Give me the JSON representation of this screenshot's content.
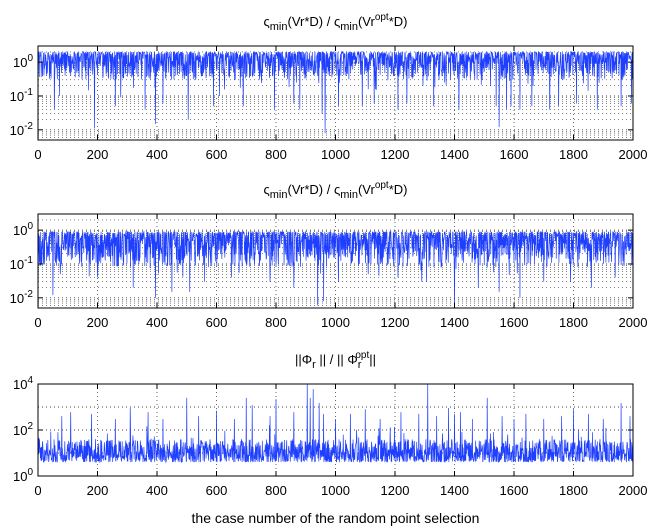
{
  "chart_data": [
    {
      "type": "line",
      "title_parts": {
        "sym": "ς",
        "sub1": "min",
        "mid": "(Vr*D) / ",
        "sym2": "ς",
        "sub2": "min",
        "pre": "(Vr",
        "sup": "opt",
        "post": "*D)"
      },
      "yscale": "log",
      "xlim": [
        0,
        2000
      ],
      "ylim": [
        0.005,
        3
      ],
      "x_ticks": [
        "0",
        "200",
        "400",
        "600",
        "800",
        "1000",
        "1200",
        "1400",
        "1600",
        "1800",
        "2000"
      ],
      "y_ticks": [
        {
          "base": "10",
          "exp": "0",
          "value": 1
        },
        {
          "base": "10",
          "exp": "-1",
          "value": 0.1
        },
        {
          "base": "10",
          "exp": "-2",
          "value": 0.01
        }
      ],
      "series_color": "#1f3fff",
      "n_points": 2000,
      "typical_range": [
        0.3,
        2.0
      ],
      "dip_floor": 0.008,
      "dips": [
        [
          55,
          0.04
        ],
        [
          72,
          0.1
        ],
        [
          190,
          0.011
        ],
        [
          260,
          0.05
        ],
        [
          360,
          0.04
        ],
        [
          395,
          0.015
        ],
        [
          420,
          0.06
        ],
        [
          505,
          0.02
        ],
        [
          590,
          0.05
        ],
        [
          610,
          0.1
        ],
        [
          690,
          0.05
        ],
        [
          795,
          0.04
        ],
        [
          860,
          0.06
        ],
        [
          880,
          0.04
        ],
        [
          955,
          0.03
        ],
        [
          965,
          0.008
        ],
        [
          1010,
          0.05
        ],
        [
          1090,
          0.05
        ],
        [
          1130,
          0.06
        ],
        [
          1210,
          0.04
        ],
        [
          1240,
          0.06
        ],
        [
          1330,
          0.05
        ],
        [
          1415,
          0.04
        ],
        [
          1540,
          0.05
        ],
        [
          1550,
          0.012
        ],
        [
          1575,
          0.04
        ],
        [
          1590,
          0.05
        ],
        [
          1620,
          0.04
        ],
        [
          1660,
          0.05
        ],
        [
          1720,
          0.04
        ],
        [
          1750,
          0.05
        ],
        [
          1810,
          0.06
        ],
        [
          1880,
          0.04
        ],
        [
          1960,
          0.05
        ],
        [
          1995,
          0.06
        ]
      ]
    },
    {
      "type": "line",
      "title_parts": {
        "sym": "ς",
        "sub1": "min",
        "mid": "(Vr*D) / ",
        "sym2": "ς",
        "sub2": "min",
        "pre": "(Vr",
        "sup": "opt",
        "post": "*D)"
      },
      "yscale": "log",
      "xlim": [
        0,
        2000
      ],
      "ylim": [
        0.005,
        3
      ],
      "x_ticks": [
        "0",
        "200",
        "400",
        "600",
        "800",
        "1000",
        "1200",
        "1400",
        "1600",
        "1800",
        "2000"
      ],
      "y_ticks": [
        {
          "base": "10",
          "exp": "0",
          "value": 1
        },
        {
          "base": "10",
          "exp": "-1",
          "value": 0.1
        },
        {
          "base": "10",
          "exp": "-2",
          "value": 0.01
        }
      ],
      "series_color": "#1f3fff",
      "n_points": 2000,
      "typical_range": [
        0.08,
        0.9
      ],
      "dip_floor": 0.006,
      "dips": [
        [
          50,
          0.012
        ],
        [
          75,
          0.05
        ],
        [
          200,
          0.04
        ],
        [
          320,
          0.02
        ],
        [
          395,
          0.01
        ],
        [
          450,
          0.015
        ],
        [
          510,
          0.015
        ],
        [
          560,
          0.03
        ],
        [
          650,
          0.04
        ],
        [
          780,
          0.03
        ],
        [
          860,
          0.02
        ],
        [
          940,
          0.006
        ],
        [
          960,
          0.008
        ],
        [
          1010,
          0.03
        ],
        [
          1110,
          0.05
        ],
        [
          1210,
          0.04
        ],
        [
          1290,
          0.03
        ],
        [
          1400,
          0.006
        ],
        [
          1480,
          0.02
        ],
        [
          1550,
          0.015
        ],
        [
          1620,
          0.01
        ],
        [
          1700,
          0.03
        ],
        [
          1790,
          0.03
        ],
        [
          1860,
          0.02
        ],
        [
          1940,
          0.04
        ]
      ]
    },
    {
      "type": "line",
      "title_parts": {
        "pre": "||Φ",
        "sub1": "r",
        "mid": " || / || Φ",
        "sub2": "r",
        "sup": "opt",
        "post": "||"
      },
      "yscale": "log",
      "xlim": [
        0,
        2000
      ],
      "ylim": [
        1,
        10000
      ],
      "x_ticks": [
        "0",
        "200",
        "400",
        "600",
        "800",
        "1000",
        "1200",
        "1400",
        "1600",
        "1800",
        "2000"
      ],
      "y_ticks": [
        {
          "base": "10",
          "exp": "4",
          "value": 10000
        },
        {
          "base": "10",
          "exp": "2",
          "value": 100
        },
        {
          "base": "10",
          "exp": "0",
          "value": 1
        }
      ],
      "series_color": "#1f3fff",
      "n_points": 2000,
      "typical_range": [
        4,
        40
      ],
      "spikes": [
        [
          80,
          400
        ],
        [
          110,
          600
        ],
        [
          180,
          500
        ],
        [
          260,
          300
        ],
        [
          310,
          900
        ],
        [
          370,
          600
        ],
        [
          420,
          300
        ],
        [
          500,
          2500
        ],
        [
          540,
          400
        ],
        [
          600,
          700
        ],
        [
          660,
          300
        ],
        [
          700,
          2500
        ],
        [
          720,
          1200
        ],
        [
          780,
          400
        ],
        [
          800,
          2200
        ],
        [
          860,
          600
        ],
        [
          905,
          10000
        ],
        [
          915,
          2500
        ],
        [
          925,
          6000
        ],
        [
          945,
          1500
        ],
        [
          960,
          500
        ],
        [
          1000,
          300
        ],
        [
          1050,
          500
        ],
        [
          1100,
          800
        ],
        [
          1150,
          300
        ],
        [
          1220,
          600
        ],
        [
          1280,
          500
        ],
        [
          1310,
          10000
        ],
        [
          1340,
          400
        ],
        [
          1380,
          900
        ],
        [
          1400,
          500
        ],
        [
          1420,
          600
        ],
        [
          1460,
          300
        ],
        [
          1510,
          2500
        ],
        [
          1560,
          400
        ],
        [
          1600,
          300
        ],
        [
          1640,
          500
        ],
        [
          1700,
          300
        ],
        [
          1760,
          400
        ],
        [
          1800,
          800
        ],
        [
          1850,
          500
        ],
        [
          1900,
          300
        ],
        [
          1960,
          1500
        ],
        [
          1990,
          400
        ]
      ],
      "xlabel": "the case number of the random point selection"
    }
  ]
}
